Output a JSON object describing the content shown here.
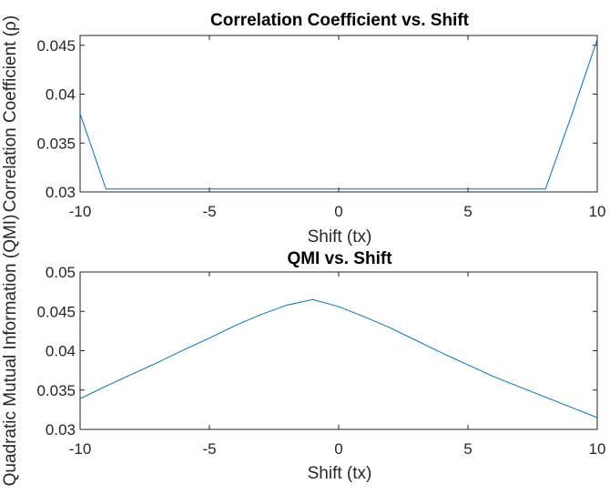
{
  "chart_data": [
    {
      "type": "line",
      "title": "Correlation Coefficient vs. Shift",
      "xlabel": "Shift (tx)",
      "ylabel": "Correlation Coefficient (ρ)",
      "xlim": [
        -10,
        10
      ],
      "ylim": [
        0.03,
        0.046
      ],
      "xticks": [
        -10,
        -5,
        0,
        5,
        10
      ],
      "yticks": [
        0.03,
        0.035,
        0.04,
        0.045
      ],
      "xtick_labels": [
        "-10",
        "-5",
        "0",
        "5",
        "10"
      ],
      "ytick_labels": [
        "0.03",
        "0.035",
        "0.04",
        "0.045"
      ],
      "grid": false,
      "series": [
        {
          "color": "#0072bd",
          "x": [
            -10,
            -9,
            -8,
            -7,
            -6,
            -5,
            -4,
            -3,
            -2,
            -1,
            0,
            1,
            2,
            3,
            4,
            5,
            6,
            7,
            8,
            9,
            10
          ],
          "y": [
            0.038,
            0.0303,
            0.0303,
            0.0303,
            0.0303,
            0.0303,
            0.0303,
            0.0303,
            0.0303,
            0.0303,
            0.0303,
            0.0303,
            0.0303,
            0.0303,
            0.0303,
            0.0303,
            0.0303,
            0.0303,
            0.0303,
            0.0378,
            0.0456
          ]
        }
      ]
    },
    {
      "type": "line",
      "title": "QMI vs. Shift",
      "xlabel": "Shift (tx)",
      "ylabel": "Quadratic Mutual Information (QMI)",
      "xlim": [
        -10,
        10
      ],
      "ylim": [
        0.03,
        0.05
      ],
      "xticks": [
        -10,
        -5,
        0,
        5,
        10
      ],
      "yticks": [
        0.03,
        0.035,
        0.04,
        0.045,
        0.05
      ],
      "xtick_labels": [
        "-10",
        "-5",
        "0",
        "5",
        "10"
      ],
      "ytick_labels": [
        "0.03",
        "0.035",
        "0.04",
        "0.045",
        "0.05"
      ],
      "grid": false,
      "series": [
        {
          "color": "#0072bd",
          "x": [
            -10,
            -9,
            -8,
            -7,
            -6,
            -5,
            -4,
            -3,
            -2,
            -1,
            0,
            1,
            2,
            3,
            4,
            5,
            6,
            7,
            8,
            9,
            10
          ],
          "y": [
            0.0339,
            0.0355,
            0.037,
            0.0385,
            0.0401,
            0.0416,
            0.0432,
            0.0446,
            0.0458,
            0.0465,
            0.0456,
            0.0443,
            0.0429,
            0.0413,
            0.0397,
            0.0382,
            0.0367,
            0.0354,
            0.0341,
            0.0328,
            0.0315
          ]
        }
      ]
    }
  ]
}
